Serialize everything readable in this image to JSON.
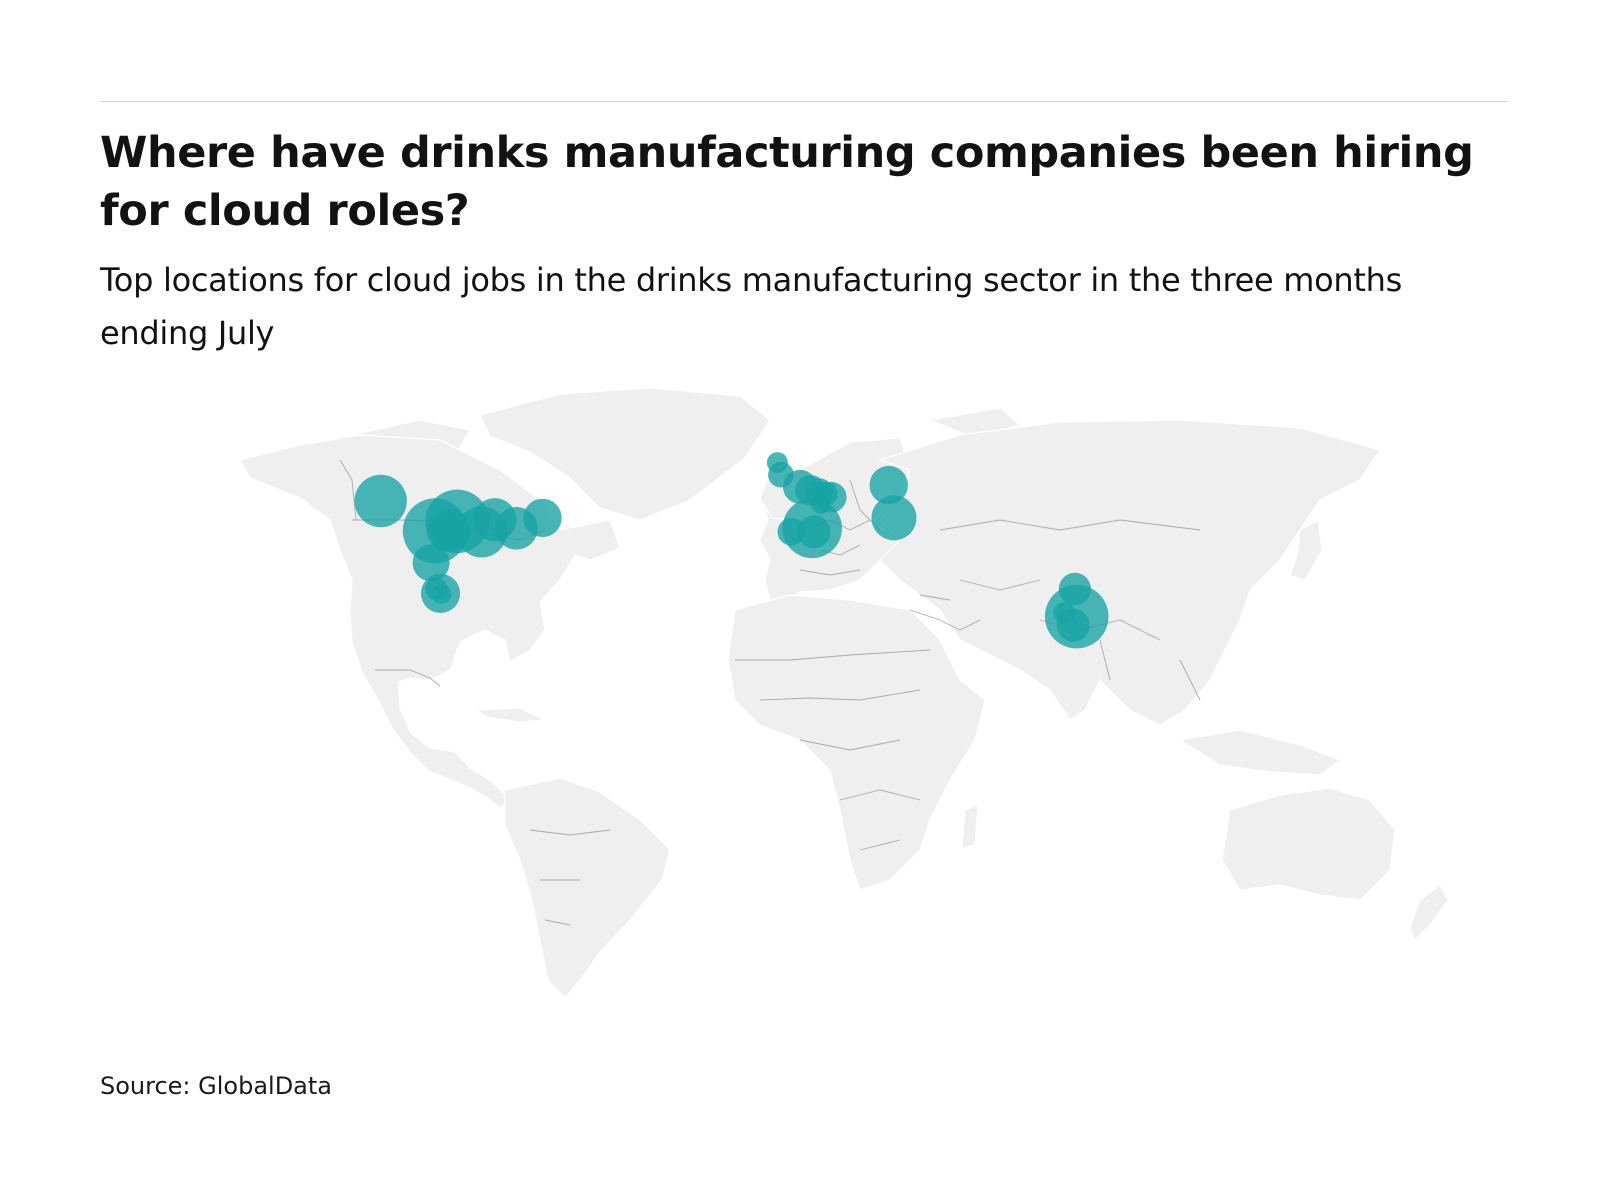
{
  "header": {
    "title": "Where have drinks manufacturing companies been hiring for cloud roles?",
    "subtitle": "Top locations for cloud jobs in the drinks manufacturing sector in the three months ending July"
  },
  "footer": {
    "source": "Source: GlobalData"
  },
  "colors": {
    "bubble": "#16a3a4",
    "land": "#efefef",
    "border": "#a9a9a9"
  },
  "chart_data": {
    "type": "bubble-map",
    "title": "Where have drinks manufacturing companies been hiring for cloud roles?",
    "subtitle": "Top locations for cloud jobs in the drinks manufacturing sector in the three months ending July",
    "size_encoding": "relative job count (largest = 1.0)",
    "legend": "none",
    "points": [
      {
        "lon": -120.5,
        "lat": 47.4,
        "size": 0.5
      },
      {
        "lon": -104.8,
        "lat": 38.8,
        "size": 0.77
      },
      {
        "lon": -98.5,
        "lat": 41.5,
        "size": 0.74
      },
      {
        "lon": -101.0,
        "lat": 39.0,
        "size": 0.34
      },
      {
        "lon": -100.3,
        "lat": 38.6,
        "size": 0.25
      },
      {
        "lon": -91.5,
        "lat": 38.5,
        "size": 0.48
      },
      {
        "lon": -87.7,
        "lat": 42.0,
        "size": 0.34
      },
      {
        "lon": -81.5,
        "lat": 39.5,
        "size": 0.33
      },
      {
        "lon": -74.0,
        "lat": 42.5,
        "size": 0.27
      },
      {
        "lon": -106.0,
        "lat": 29.5,
        "size": 0.25
      },
      {
        "lon": -103.3,
        "lat": 20.7,
        "size": 0.28
      },
      {
        "lon": -104.5,
        "lat": 22.0,
        "size": 0.09
      },
      {
        "lon": -103.0,
        "lat": 20.5,
        "size": 0.07
      },
      {
        "lon": -6.5,
        "lat": 58.5,
        "size": 0.08
      },
      {
        "lon": -5.5,
        "lat": 55.0,
        "size": 0.12
      },
      {
        "lon": 0.0,
        "lat": 51.5,
        "size": 0.21
      },
      {
        "lon": 3.0,
        "lat": 50.5,
        "size": 0.17
      },
      {
        "lon": 5.5,
        "lat": 50.0,
        "size": 0.14
      },
      {
        "lon": 7.5,
        "lat": 49.5,
        "size": 0.1
      },
      {
        "lon": 9.0,
        "lat": 48.5,
        "size": 0.17
      },
      {
        "lon": 3.5,
        "lat": 39.5,
        "size": 0.65
      },
      {
        "lon": 4.0,
        "lat": 38.5,
        "size": 0.2
      },
      {
        "lon": -2.5,
        "lat": 38.5,
        "size": 0.14
      },
      {
        "lon": 6.0,
        "lat": 46.5,
        "size": 0.07
      },
      {
        "lon": 25.5,
        "lat": 52.0,
        "size": 0.27
      },
      {
        "lon": 27.0,
        "lat": 42.5,
        "size": 0.37
      },
      {
        "lon": 79.0,
        "lat": 22.0,
        "size": 0.19
      },
      {
        "lon": 79.5,
        "lat": 14.0,
        "size": 0.74
      },
      {
        "lon": 78.5,
        "lat": 11.5,
        "size": 0.2
      },
      {
        "lon": 76.0,
        "lat": 15.0,
        "size": 0.09
      }
    ]
  }
}
